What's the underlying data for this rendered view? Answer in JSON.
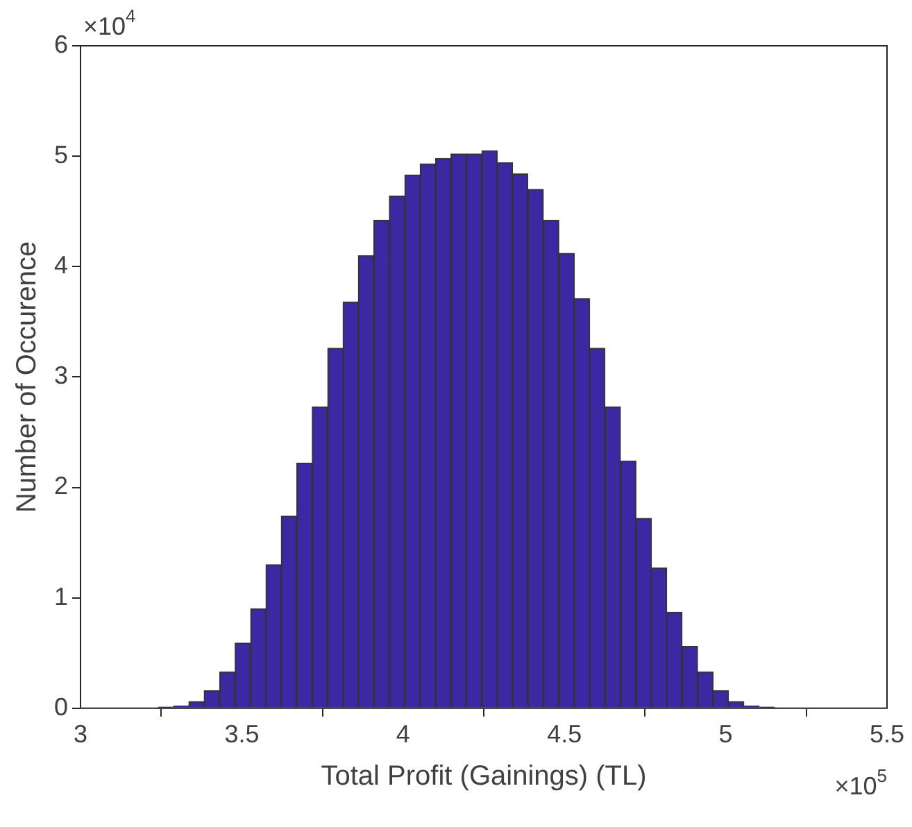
{
  "chart_data": {
    "type": "histogram",
    "xlabel": "Total Profit (Gainings) (TL)",
    "ylabel": "Number of Occurence",
    "bins": [
      3.24,
      3.288,
      3.336,
      3.383,
      3.431,
      3.479,
      3.527,
      3.575,
      3.622,
      3.67,
      3.718,
      3.766,
      3.814,
      3.861,
      3.909,
      3.957,
      4.005,
      4.053,
      4.1,
      4.148,
      4.196,
      4.244,
      4.292,
      4.339,
      4.387,
      4.435,
      4.483,
      4.531,
      4.578,
      4.626,
      4.674,
      4.722,
      4.77,
      4.817,
      4.865,
      4.913,
      4.961,
      5.009,
      5.056,
      5.104,
      5.152
    ],
    "values": [
      0.01,
      0.02,
      0.06,
      0.16,
      0.33,
      0.59,
      0.9,
      1.3,
      1.74,
      2.22,
      2.73,
      3.26,
      3.68,
      4.1,
      4.42,
      4.64,
      4.83,
      4.93,
      4.98,
      5.02,
      5.02,
      5.05,
      4.94,
      4.84,
      4.7,
      4.42,
      4.12,
      3.71,
      3.26,
      2.73,
      2.24,
      1.72,
      1.27,
      0.87,
      0.56,
      0.33,
      0.16,
      0.06,
      0.02,
      0.01
    ],
    "color": "#3b28a2",
    "xlim": [
      3,
      5.5
    ],
    "xticks": [
      3,
      3.5,
      4,
      4.5,
      5,
      5.5
    ],
    "ylim": [
      0,
      6
    ],
    "yticks": [
      0,
      1,
      2,
      3,
      4,
      5,
      6
    ],
    "annotations": [
      "×10$^{4}$",
      "×10$^{5}$"
    ]
  }
}
